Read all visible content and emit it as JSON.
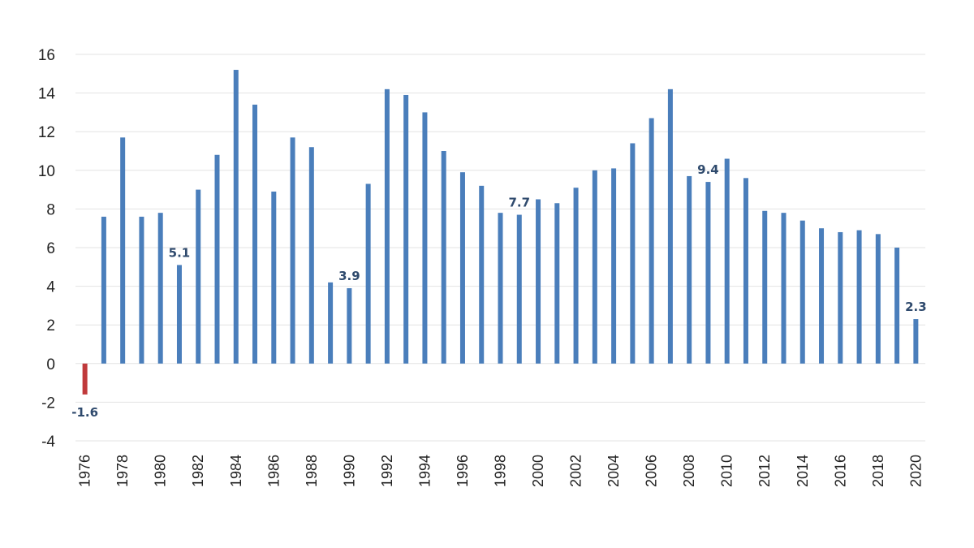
{
  "chart_data": {
    "type": "bar",
    "title": "",
    "xlabel": "",
    "ylabel": "",
    "ylim": [
      -4,
      16
    ],
    "yticks": [
      -4,
      -2,
      0,
      2,
      4,
      6,
      8,
      10,
      12,
      14,
      16
    ],
    "grid": true,
    "legend": "none",
    "x": [
      1976,
      1977,
      1978,
      1979,
      1980,
      1981,
      1982,
      1983,
      1984,
      1985,
      1986,
      1987,
      1988,
      1989,
      1990,
      1991,
      1992,
      1993,
      1994,
      1995,
      1996,
      1997,
      1998,
      1999,
      2000,
      2001,
      2002,
      2003,
      2004,
      2005,
      2006,
      2007,
      2008,
      2009,
      2010,
      2011,
      2012,
      2013,
      2014,
      2015,
      2016,
      2017,
      2018,
      2019,
      2020
    ],
    "values": [
      -1.6,
      7.6,
      11.7,
      7.6,
      7.8,
      5.1,
      9.0,
      10.8,
      15.2,
      13.4,
      8.9,
      11.7,
      11.2,
      4.2,
      3.9,
      9.3,
      14.2,
      13.9,
      13.0,
      11.0,
      9.9,
      9.2,
      7.8,
      7.7,
      8.5,
      8.3,
      9.1,
      10.0,
      10.1,
      11.4,
      12.7,
      14.2,
      9.7,
      9.4,
      10.6,
      9.6,
      7.9,
      7.8,
      7.4,
      7.0,
      6.8,
      6.9,
      6.7,
      6.0,
      2.3
    ],
    "xtick_labels": [
      "1976",
      "1978",
      "1980",
      "1982",
      "1984",
      "1986",
      "1988",
      "1990",
      "1992",
      "1994",
      "1996",
      "1998",
      "2000",
      "2002",
      "2004",
      "2006",
      "2008",
      "2010",
      "2012",
      "2014",
      "2016",
      "2018",
      "2020"
    ],
    "data_labels": [
      {
        "x": 1976,
        "text": "-1.6"
      },
      {
        "x": 1981,
        "text": "5.1"
      },
      {
        "x": 1990,
        "text": "3.9"
      },
      {
        "x": 1999,
        "text": "7.7"
      },
      {
        "x": 2009,
        "text": "9.4"
      },
      {
        "x": 2020,
        "text": "2.3"
      }
    ],
    "colors": {
      "positive": "#4a7ebb",
      "negative": "#c0393b",
      "grid": "#e3e3e3"
    }
  }
}
